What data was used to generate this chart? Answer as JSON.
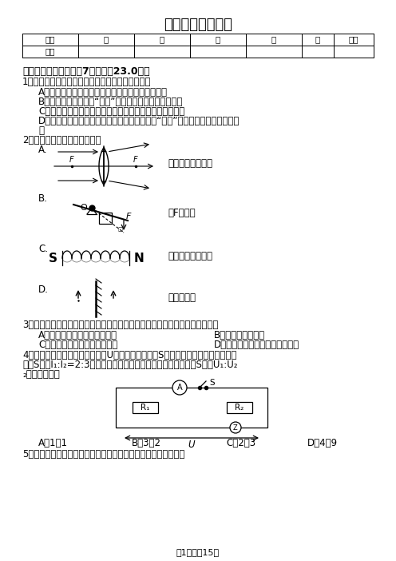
{
  "title": "中考物理模拟试卷",
  "table_headers": [
    "题号",
    "一",
    "二",
    "三",
    "四",
    "五",
    "总分"
  ],
  "table_row": [
    "得分",
    "",
    "",
    "",
    "",
    "",
    ""
  ],
  "section1_title": "一、单选题（本大题共7小题，全23.0分）",
  "q1": "1．下列关于物态变化的说法中，正确的是（　　）",
  "q1a": "A．春天，河里冰雪消融的过程要吸热，是升华现象",
  "q1b": "B．夏天，雪糕周围冒“白气”的过程要放热，是汽化现象",
  "q1c": "C．秋天，早晨花草上形成露珠的过程要吸热，是液化现象",
  "q1d1": "D．冬天，戴眼镜的人从室外进入室内，镜片变“模糊”的过程要放热，是液化现",
  "q1d2": "象",
  "q2": "2．下列作图正确的是（　　）",
  "q2a_desc": "凹透镜对光的作用",
  "q2b_desc": "力F的力臂",
  "q2c_desc": "判定螺线管的极性",
  "q2d_desc": "平面镜成像",
  "q3": "3．容器内盛有部分水，在盐水中放入一块淡水湖固成的冰，冰溶化后（　　）",
  "q3a": "A．盐水的密度减小，液面上升",
  "q3b": "B．盐水的密度不变",
  "q3c": "C．盐水的密度减小，液面下降",
  "q3d": "D．盐水的密度不变，液面也不变",
  "q4l1": "4．如图所示的电路中，电源电压U保持不变，若合上S，之两处都接入电流表，断开",
  "q4l2": "开关S，则I₁:I₂=2:3，若在乙、乙两处都接入电压表，若合开关S，则U₁:U₂",
  "q4l3": "₂等于（　　）",
  "q4a": "A．1：1",
  "q4b": "B．3：2",
  "q4c": "C．2：3",
  "q4d": "D．4：9",
  "q5_start": "5．如图是小希设计的家庭电路图，下列选项中正确的是（　　）",
  "page_footer": "第1页，全15页",
  "bg_color": "#ffffff",
  "text_color": "#000000"
}
